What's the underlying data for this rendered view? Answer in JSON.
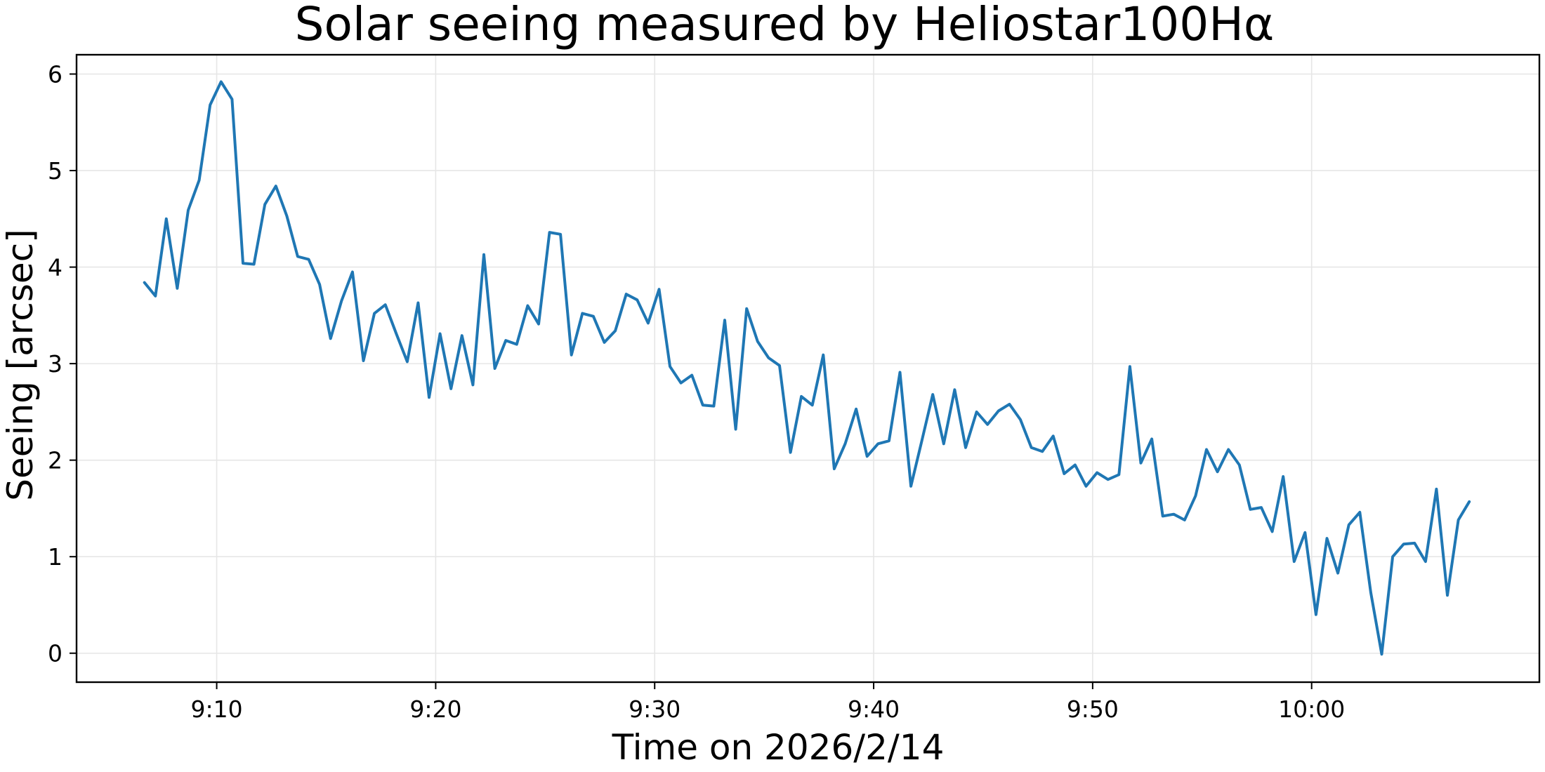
{
  "chart_data": {
    "type": "line",
    "title": "Solar seeing measured by Heliostar100Hα",
    "xlabel": "Time on 2026/2/14",
    "ylabel": "Seeing [arcsec]",
    "x_tick_labels": [
      "9:10",
      "9:20",
      "9:30",
      "9:40",
      "9:50",
      "10:00"
    ],
    "x_tick_minutes": [
      550,
      560,
      570,
      580,
      590,
      600
    ],
    "y_ticks": [
      0,
      1,
      2,
      3,
      4,
      5,
      6
    ],
    "xlim_minutes": [
      543.6,
      610.4
    ],
    "ylim": [
      -0.3,
      6.2
    ],
    "grid": true,
    "line_color": "#1f77b4",
    "series": [
      {
        "x_minutes": [
          546.7,
          547.2,
          547.7,
          548.2,
          548.7,
          549.2,
          549.7,
          550.2,
          550.7,
          551.2,
          551.7,
          552.2,
          552.7,
          553.2,
          553.7,
          554.2,
          554.7,
          555.2,
          555.7,
          556.2,
          556.7,
          557.2,
          557.7,
          558.2,
          558.7,
          559.2,
          559.7,
          560.2,
          560.7,
          561.2,
          561.7,
          562.2,
          562.7,
          563.2,
          563.7,
          564.2,
          564.7,
          565.2,
          565.7,
          566.2,
          566.7,
          567.2,
          567.7,
          568.2,
          568.7,
          569.2,
          569.7,
          570.2,
          570.7,
          571.2,
          571.7,
          572.2,
          572.7,
          573.2,
          573.7,
          574.2,
          574.7,
          575.2,
          575.7,
          576.2,
          576.7,
          577.2,
          577.7,
          578.2,
          578.7,
          579.2,
          579.7,
          580.2,
          580.7,
          581.2,
          581.7,
          582.2,
          582.7,
          583.2,
          583.7,
          584.2,
          584.7,
          585.2,
          585.7,
          586.2,
          586.7,
          587.2,
          587.7,
          588.2,
          588.7,
          589.2,
          589.7,
          590.2,
          590.7,
          591.2,
          591.7,
          592.2,
          592.7,
          593.2,
          593.7,
          594.2,
          594.7,
          595.2,
          595.7,
          596.2,
          596.7,
          597.2,
          597.7,
          598.2,
          598.7,
          599.2,
          599.7,
          600.2,
          600.7,
          601.2,
          601.7,
          602.2,
          602.7,
          603.2,
          603.7,
          604.2,
          604.7,
          605.2,
          605.7,
          606.2,
          606.7,
          607.2
        ],
        "values": [
          3.84,
          3.7,
          4.5,
          3.78,
          4.59,
          4.9,
          5.68,
          5.92,
          5.74,
          4.04,
          4.03,
          4.65,
          4.84,
          4.53,
          4.11,
          4.08,
          3.82,
          3.26,
          3.65,
          3.95,
          3.03,
          3.52,
          3.61,
          3.31,
          3.02,
          3.63,
          2.65,
          3.31,
          2.74,
          3.29,
          2.78,
          4.13,
          2.95,
          3.24,
          3.2,
          3.6,
          3.41,
          4.36,
          4.34,
          3.09,
          3.52,
          3.49,
          3.22,
          3.34,
          3.72,
          3.66,
          3.42,
          3.77,
          2.97,
          2.8,
          2.88,
          2.57,
          2.56,
          3.45,
          2.32,
          3.57,
          3.23,
          3.06,
          2.98,
          2.08,
          2.66,
          2.57,
          3.09,
          1.91,
          2.17,
          2.53,
          2.04,
          2.17,
          2.2,
          2.91,
          1.73,
          2.2,
          2.68,
          2.17,
          2.73,
          2.13,
          2.5,
          2.37,
          2.51,
          2.58,
          2.42,
          2.13,
          2.09,
          2.25,
          1.86,
          1.95,
          1.73,
          1.87,
          1.8,
          1.85,
          2.97,
          1.97,
          2.22,
          1.42,
          1.44,
          1.38,
          1.63,
          2.11,
          1.88,
          2.11,
          1.95,
          1.49,
          1.51,
          1.26,
          1.83,
          0.95,
          1.25,
          0.4,
          1.19,
          0.83,
          1.33,
          1.46,
          0.63,
          -0.01,
          1.0,
          1.13,
          1.14,
          0.95,
          1.7,
          0.6,
          1.38,
          1.57
        ]
      }
    ]
  }
}
